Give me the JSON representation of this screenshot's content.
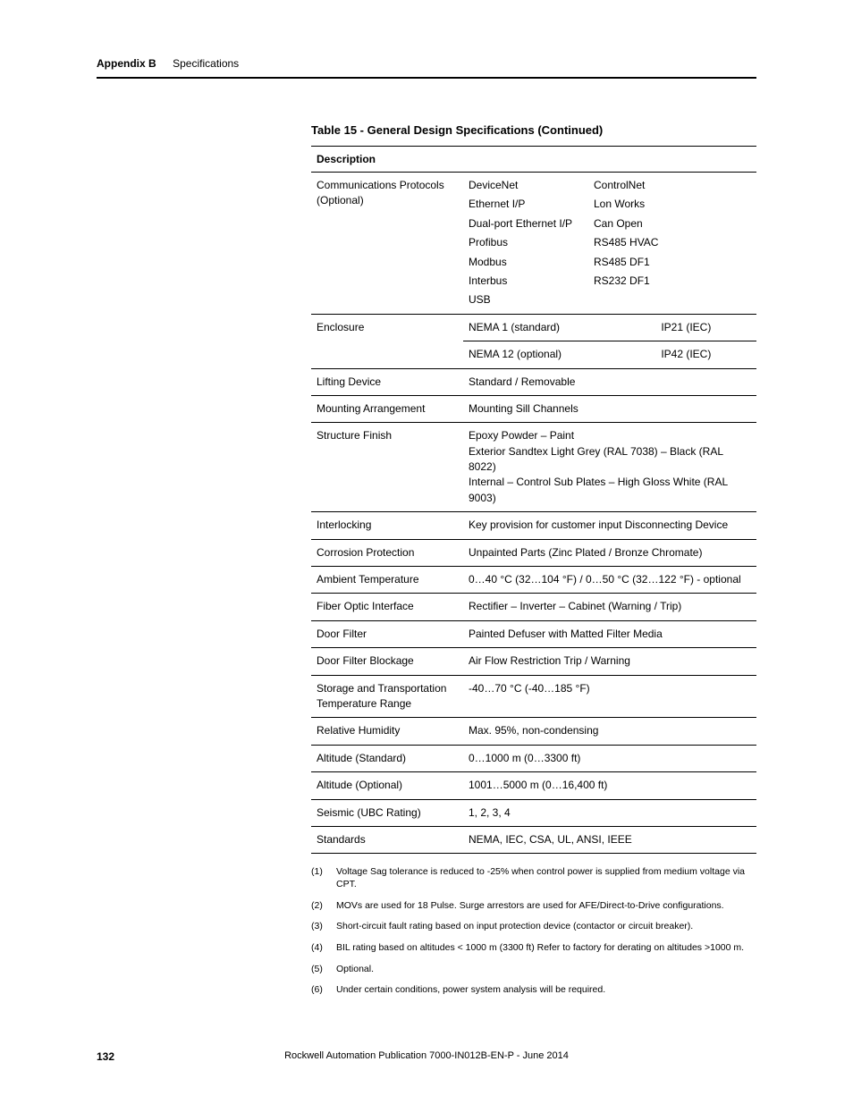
{
  "header": {
    "appendix": "Appendix B",
    "section": "Specifications"
  },
  "table": {
    "title": "Table 15 - General Design Specifications  (Continued)",
    "header": "Description",
    "rows": {
      "comm": {
        "label": "Communications Protocols",
        "sublabel": "(Optional)",
        "left": [
          "DeviceNet",
          "Ethernet I/P",
          "Dual-port Ethernet I/P",
          "Profibus",
          "Modbus",
          "Interbus",
          "USB"
        ],
        "right": [
          "ControlNet",
          "Lon Works",
          "Can Open",
          "RS485 HVAC",
          "RS485 DF1",
          "RS232 DF1"
        ]
      },
      "enclosure": {
        "label": "Enclosure",
        "r1c1": "NEMA 1 (standard)",
        "r1c2": "IP21 (IEC)",
        "r2c1": "NEMA 12 (optional)",
        "r2c2": "IP42 (IEC)"
      },
      "lifting": {
        "label": "Lifting Device",
        "value": "Standard / Removable"
      },
      "mounting": {
        "label": "Mounting Arrangement",
        "value": "Mounting Sill Channels"
      },
      "finish": {
        "label": "Structure Finish",
        "l1": "Epoxy Powder – Paint",
        "l2": "Exterior Sandtex Light Grey (RAL 7038) – Black (RAL 8022)",
        "l3": "Internal – Control Sub Plates – High Gloss White (RAL 9003)"
      },
      "interlock": {
        "label": "Interlocking",
        "value": "Key provision for customer input Disconnecting Device"
      },
      "corrosion": {
        "label": "Corrosion Protection",
        "value": "Unpainted Parts (Zinc Plated / Bronze Chromate)"
      },
      "ambient": {
        "label": "Ambient Temperature",
        "value": "0…40 °C (32…104 °F) / 0…50 °C (32…122 °F) - optional"
      },
      "fiber": {
        "label": "Fiber Optic Interface",
        "value": "Rectifier – Inverter – Cabinet (Warning / Trip)"
      },
      "doorfilt": {
        "label": "Door Filter",
        "value": "Painted Defuser with Matted Filter Media"
      },
      "doorblock": {
        "label": "Door Filter Blockage",
        "value": "Air Flow Restriction Trip / Warning"
      },
      "storage": {
        "label": "Storage and Transportation Temperature Range",
        "value": "-40…70 °C (-40…185 °F)"
      },
      "humidity": {
        "label": "Relative Humidity",
        "value": "Max. 95%, non-condensing"
      },
      "altstd": {
        "label": "Altitude (Standard)",
        "value": "0…1000 m (0…3300 ft)"
      },
      "altopt": {
        "label": "Altitude (Optional)",
        "value": "1001…5000 m (0…16,400 ft)"
      },
      "seismic": {
        "label": "Seismic (UBC Rating)",
        "value": "1, 2, 3, 4"
      },
      "standards": {
        "label": "Standards",
        "value": "NEMA, IEC, CSA, UL, ANSI, IEEE"
      }
    }
  },
  "notes": [
    {
      "n": "(1)",
      "t": "Voltage Sag tolerance is reduced to -25% when control power is supplied from medium voltage via CPT."
    },
    {
      "n": "(2)",
      "t": "MOVs are used for 18 Pulse. Surge arrestors are used for AFE/Direct-to-Drive configurations."
    },
    {
      "n": "(3)",
      "t": "Short-circuit fault rating based on input protection device (contactor or circuit breaker)."
    },
    {
      "n": "(4)",
      "t": "BIL rating based on altitudes < 1000 m (3300 ft)  Refer to factory for derating on altitudes >1000 m."
    },
    {
      "n": "(5)",
      "t": "Optional."
    },
    {
      "n": "(6)",
      "t": "Under certain conditions, power system analysis will be required."
    }
  ],
  "footer": {
    "page": "132",
    "pub": "Rockwell Automation Publication 7000-IN012B-EN-P - June 2014"
  }
}
